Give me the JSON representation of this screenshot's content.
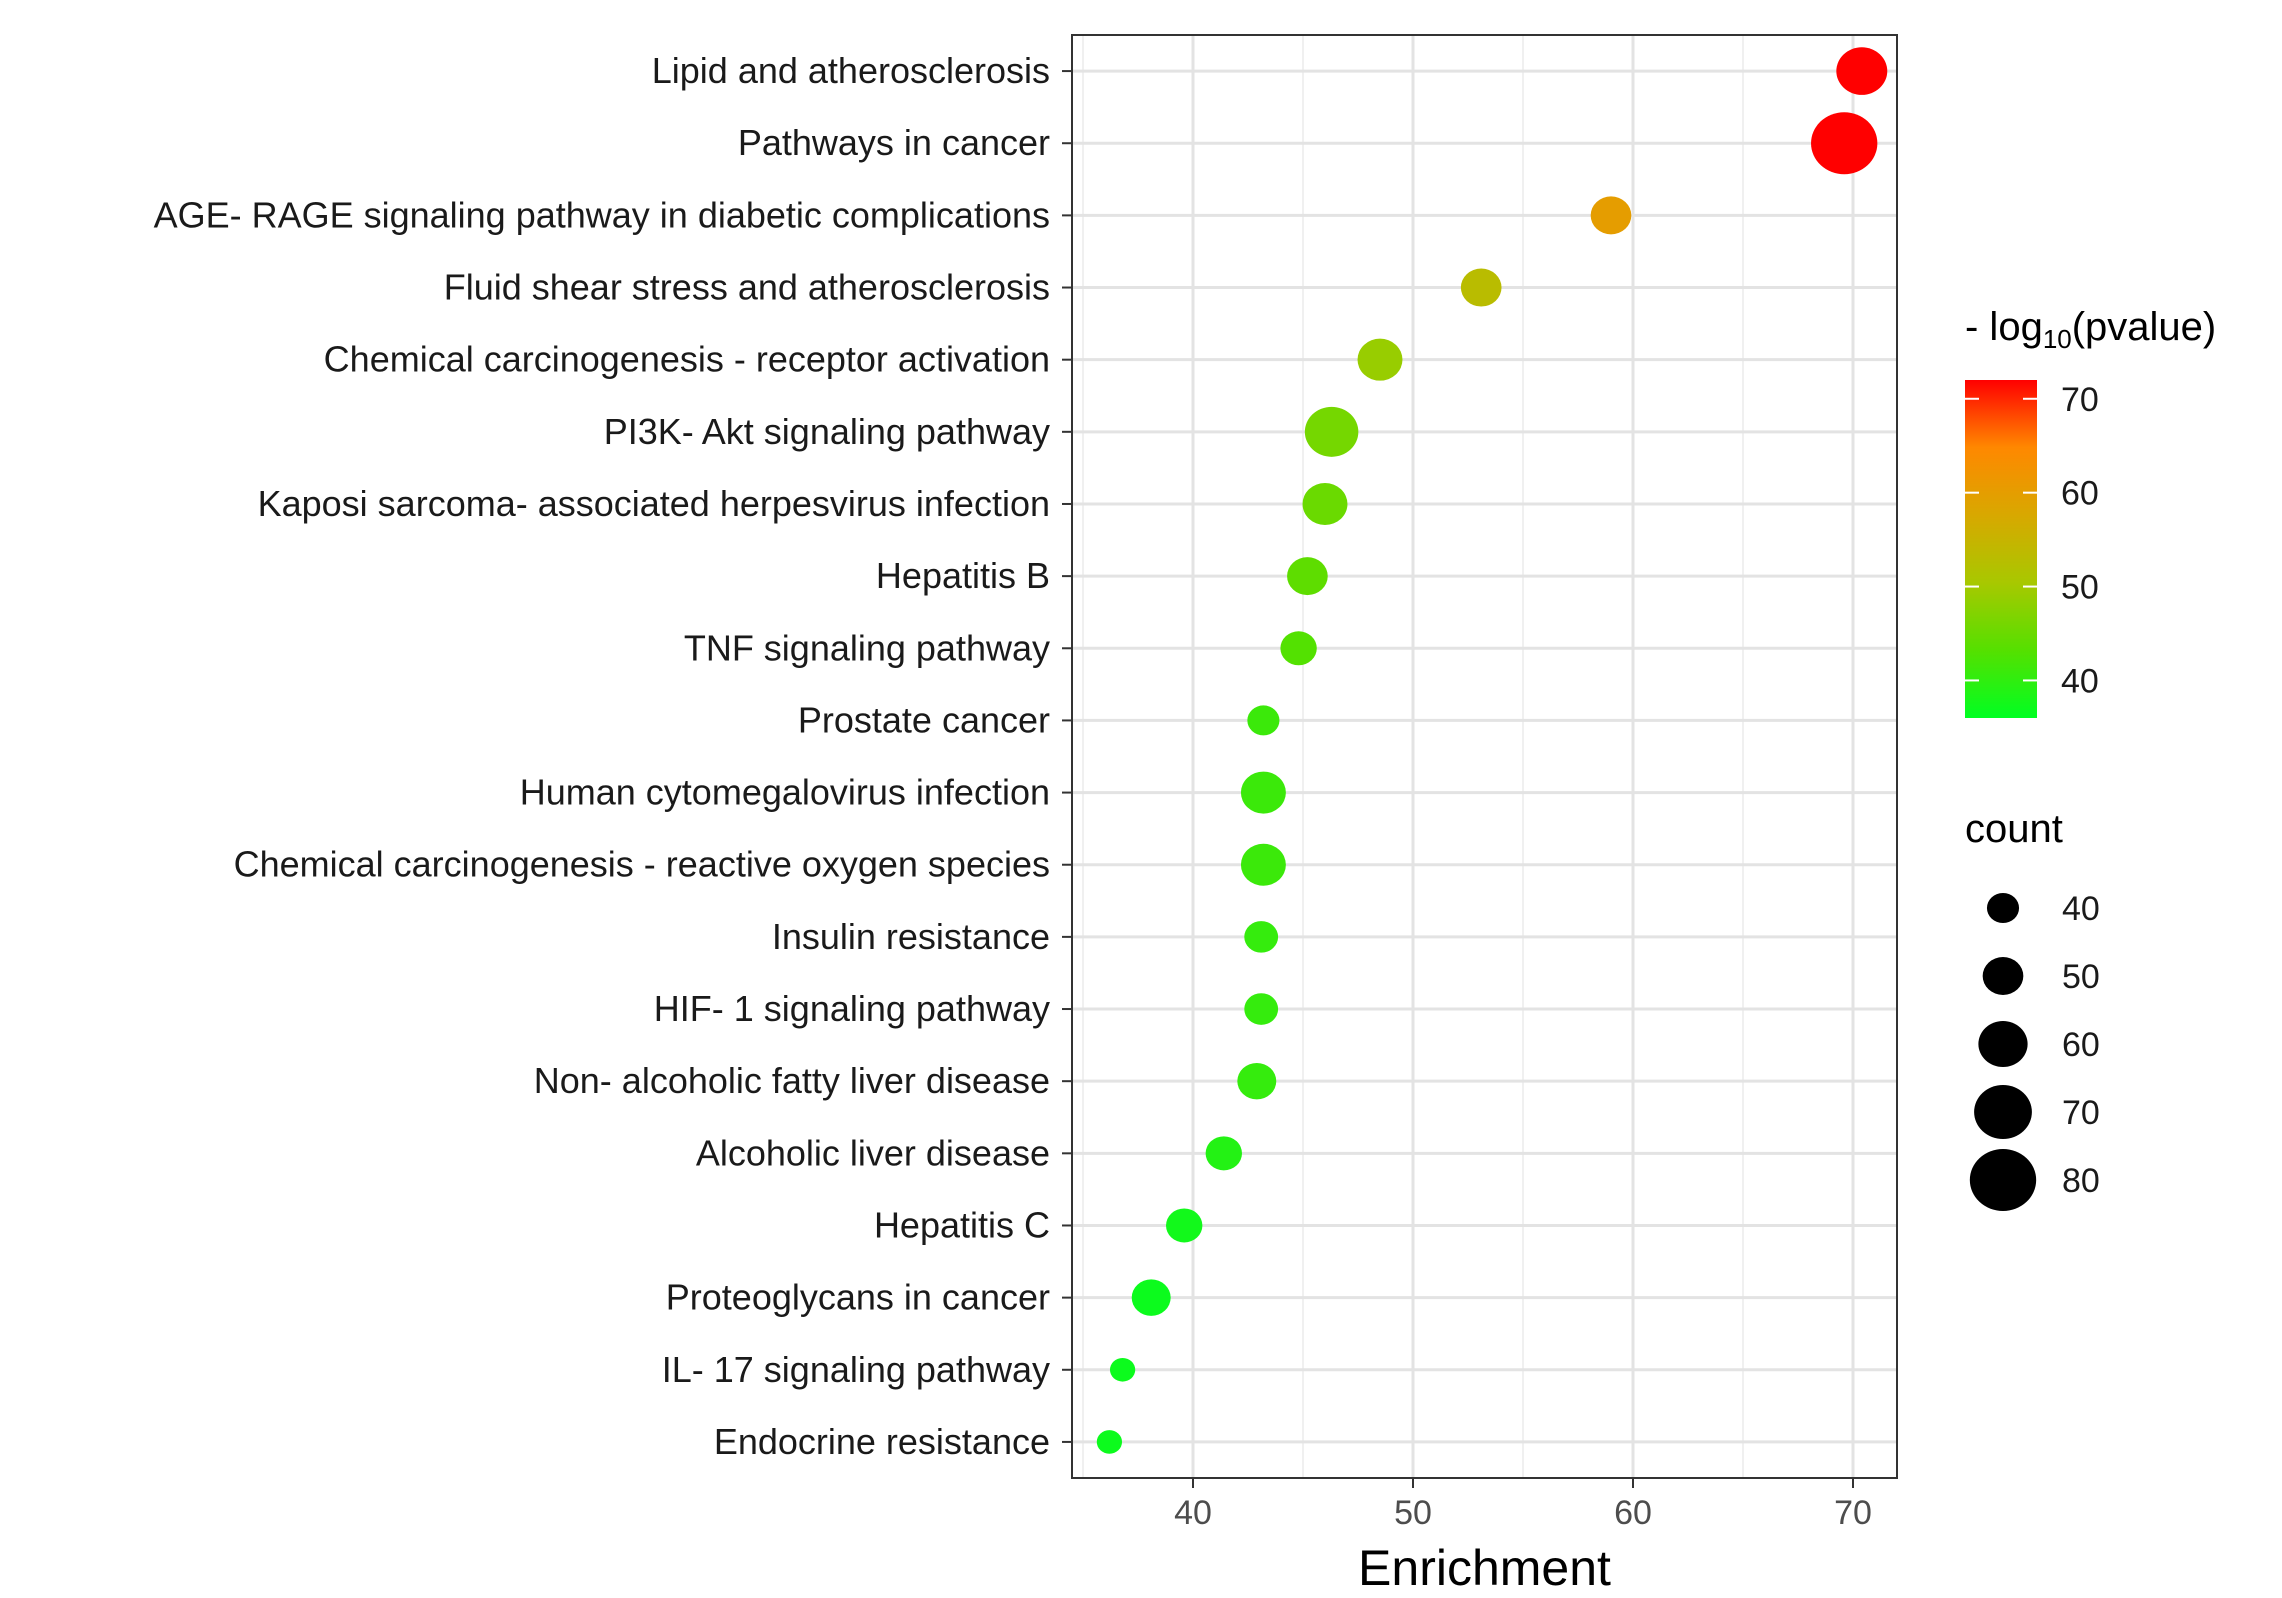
{
  "chart_data": {
    "type": "scatter",
    "xlabel": "Enrichment",
    "ylabel": "",
    "xlim": [
      34.5,
      72
    ],
    "x_ticks": [
      40,
      50,
      60,
      70
    ],
    "x_tick_labels": [
      "40",
      "50",
      "60",
      "70"
    ],
    "grid": true,
    "categories": [
      "Lipid and atherosclerosis",
      "Pathways in cancer",
      "AGE- RAGE signaling pathway in diabetic complications",
      "Fluid shear stress and atherosclerosis",
      "Chemical carcinogenesis -  receptor activation",
      "PI3K- Akt signaling pathway",
      "Kaposi sarcoma- associated herpesvirus infection",
      "Hepatitis B",
      "TNF signaling pathway",
      "Prostate cancer",
      "Human cytomegalovirus infection",
      "Chemical carcinogenesis -  reactive oxygen species",
      "Insulin resistance",
      "HIF- 1 signaling pathway",
      "Non- alcoholic fatty liver disease",
      "Alcoholic liver disease",
      "Hepatitis C",
      "Proteoglycans in cancer",
      "IL- 17 signaling pathway",
      "Endocrine resistance"
    ],
    "enrichment": [
      70.4,
      69.6,
      59.0,
      53.1,
      48.5,
      46.3,
      46.0,
      45.2,
      44.8,
      43.2,
      43.2,
      43.2,
      43.1,
      43.1,
      42.9,
      41.4,
      39.6,
      38.1,
      36.8,
      36.2
    ],
    "count": [
      62,
      80,
      50,
      50,
      55,
      65,
      55,
      50,
      45,
      40,
      55,
      55,
      42,
      42,
      48,
      45,
      45,
      48,
      32,
      32
    ],
    "neg_log10_pvalue": [
      72,
      72,
      60,
      53,
      49,
      46,
      45,
      44,
      43,
      41,
      41,
      41,
      40.5,
      40.5,
      40.5,
      39,
      37.5,
      37,
      37,
      37
    ],
    "color_legend": {
      "title_prefix": "- log",
      "title_subscript": "10",
      "title_suffix": "(pvalue)",
      "ticks": [
        70,
        60,
        50,
        40
      ],
      "range": [
        36,
        72
      ],
      "colors": [
        "#00ff22",
        "#55e000",
        "#a8c800",
        "#d8a800",
        "#ff8800",
        "#ff0000"
      ]
    },
    "size_legend": {
      "title": "count",
      "values": [
        40,
        50,
        60,
        70,
        80
      ]
    },
    "point_colors": {
      "low": "#00ff22",
      "mid": "#a8c800",
      "high": "#ff0000"
    },
    "legend_position": "right"
  }
}
